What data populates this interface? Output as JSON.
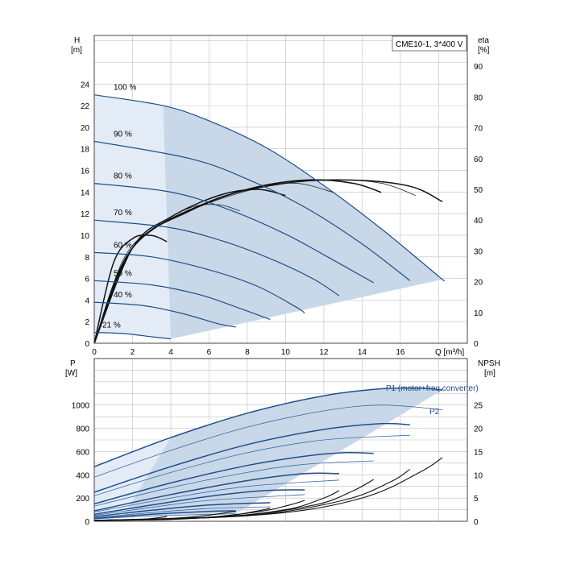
{
  "chart_data": [
    {
      "type": "line",
      "title": "CME10-1, 3*400 V",
      "xlabel": "Q [m³/h]",
      "ylabel_left": {
        "name": "H",
        "unit": "[m]"
      },
      "ylabel_right": {
        "name": "eta",
        "unit": "[%]"
      },
      "xlim": [
        0,
        19.5
      ],
      "ylim_left": [
        0,
        28.5
      ],
      "ylim_right": [
        0,
        100
      ],
      "x_ticks": [
        "0",
        "2",
        "4",
        "6",
        "8",
        "10",
        "12",
        "14",
        "16"
      ],
      "y_left_ticks": [
        "0",
        "2",
        "4",
        "6",
        "8",
        "10",
        "12",
        "14",
        "16",
        "18",
        "20",
        "22",
        "24"
      ],
      "y_right_ticks": [
        "0",
        "10",
        "20",
        "30",
        "40",
        "50",
        "60",
        "70",
        "80",
        "90"
      ],
      "grid": true,
      "head_curves": [
        {
          "name": "100 %",
          "points": [
            [
              0,
              23.0
            ],
            [
              3.6,
              22.0
            ],
            [
              6,
              20.6
            ],
            [
              9,
              18.1
            ],
            [
              12,
              14.6
            ],
            [
              15,
              10.6
            ],
            [
              18,
              6.2
            ],
            [
              18.2,
              5.9
            ]
          ]
        },
        {
          "name": "90 %",
          "points": [
            [
              0,
              18.7
            ],
            [
              5,
              17.1
            ],
            [
              8,
              15.2
            ],
            [
              11,
              12.6
            ],
            [
              14,
              9.2
            ],
            [
              16.5,
              5.8
            ]
          ]
        },
        {
          "name": "80 %",
          "points": [
            [
              0,
              14.8
            ],
            [
              4,
              14.0
            ],
            [
              7,
              12.4
            ],
            [
              10,
              10.1
            ],
            [
              12.8,
              7.4
            ],
            [
              14.6,
              5.6
            ]
          ]
        },
        {
          "name": "70 %",
          "points": [
            [
              0,
              11.4
            ],
            [
              4,
              10.7
            ],
            [
              7,
              9.3
            ],
            [
              9.5,
              7.6
            ],
            [
              11.5,
              5.9
            ],
            [
              12.8,
              4.4
            ]
          ]
        },
        {
          "name": "60 %",
          "points": [
            [
              0,
              8.4
            ],
            [
              3,
              8.0
            ],
            [
              6,
              6.8
            ],
            [
              8.5,
              5.3
            ],
            [
              10.5,
              3.4
            ],
            [
              11,
              2.8
            ]
          ]
        },
        {
          "name": "50 %",
          "points": [
            [
              0,
              5.8
            ],
            [
              3,
              5.4
            ],
            [
              5.5,
              4.5
            ],
            [
              7.5,
              3.3
            ],
            [
              9.2,
              2.2
            ]
          ]
        },
        {
          "name": "40 %",
          "points": [
            [
              0,
              3.8
            ],
            [
              2.5,
              3.5
            ],
            [
              4.5,
              2.8
            ],
            [
              6.5,
              1.8
            ],
            [
              7.4,
              1.5
            ]
          ]
        },
        {
          "name": "21 %",
          "points": [
            [
              0,
              1.0
            ],
            [
              1.5,
              0.9
            ],
            [
              3,
              0.6
            ],
            [
              4,
              0.4
            ]
          ]
        }
      ],
      "efficiency_curves": [
        {
          "points": [
            [
              0,
              0
            ],
            [
              1,
              26
            ],
            [
              2,
              34
            ],
            [
              3,
              35
            ],
            [
              3.8,
              33
            ]
          ]
        },
        {
          "points": [
            [
              0,
              0
            ],
            [
              1.5,
              27
            ],
            [
              3,
              37
            ],
            [
              5,
              44
            ],
            [
              6.5,
              45
            ],
            [
              7.6,
              43
            ]
          ]
        },
        {
          "points": [
            [
              0,
              0
            ],
            [
              2,
              31
            ],
            [
              4,
              41
            ],
            [
              6.5,
              48
            ],
            [
              8.5,
              50
            ],
            [
              10,
              48
            ]
          ]
        },
        {
          "points": [
            [
              0,
              0
            ],
            [
              2,
              31
            ],
            [
              5,
              43
            ],
            [
              8,
              50
            ],
            [
              10.5,
              52
            ],
            [
              12.5,
              49
            ]
          ]
        },
        {
          "points": [
            [
              0,
              0
            ],
            [
              2,
              31
            ],
            [
              5,
              43
            ],
            [
              8,
              50
            ],
            [
              11,
              53
            ],
            [
              13.5,
              52
            ],
            [
              15,
              49
            ]
          ]
        },
        {
          "points": [
            [
              0,
              0
            ],
            [
              2,
              31
            ],
            [
              5,
              43
            ],
            [
              9,
              51
            ],
            [
              12.5,
              53
            ],
            [
              15,
              52
            ],
            [
              16.8,
              48
            ]
          ]
        },
        {
          "points": [
            [
              0,
              0
            ],
            [
              2,
              31
            ],
            [
              6,
              46
            ],
            [
              10,
              52
            ],
            [
              13.5,
              53
            ],
            [
              16.5,
              51
            ],
            [
              18.2,
              46
            ]
          ]
        }
      ]
    },
    {
      "type": "line",
      "xlabel": "",
      "ylabel_left": {
        "name": "P",
        "unit": "[W]"
      },
      "ylabel_right": {
        "name": "NPSH",
        "unit": "[m]"
      },
      "xlim": [
        0,
        19.5
      ],
      "ylim_left": [
        0,
        1400
      ],
      "ylim_right": [
        0,
        35
      ],
      "y_left_ticks": [
        "0",
        "200",
        "400",
        "600",
        "800",
        "1000"
      ],
      "y_right_ticks": [
        "0",
        "5",
        "10",
        "15",
        "20",
        "25"
      ],
      "grid": true,
      "annotations": {
        "p1": "P1 (motor+freq.converter)",
        "p2": "P2"
      },
      "p1_curves": [
        {
          "name": "P1 (motor+freq.converter)",
          "points": [
            [
              0,
              470
            ],
            [
              4,
              720
            ],
            [
              8,
              930
            ],
            [
              12,
              1080
            ],
            [
              15,
              1140
            ],
            [
              17,
              1145
            ],
            [
              18.2,
              1130
            ]
          ]
        },
        {
          "points": [
            [
              0,
              250
            ],
            [
              4,
              470
            ],
            [
              8,
              660
            ],
            [
              12,
              790
            ],
            [
              15,
              840
            ],
            [
              16.5,
              830
            ]
          ]
        },
        {
          "points": [
            [
              0,
              150
            ],
            [
              4,
              330
            ],
            [
              8,
              480
            ],
            [
              11,
              560
            ],
            [
              13,
              590
            ],
            [
              14.6,
              585
            ]
          ]
        },
        {
          "points": [
            [
              0,
              90
            ],
            [
              4,
              230
            ],
            [
              8,
              350
            ],
            [
              11,
              410
            ],
            [
              12.8,
              410
            ]
          ]
        },
        {
          "points": [
            [
              0,
              60
            ],
            [
              3,
              140
            ],
            [
              6,
              215
            ],
            [
              9,
              265
            ],
            [
              11,
              270
            ]
          ]
        },
        {
          "points": [
            [
              0,
              40
            ],
            [
              3,
              95
            ],
            [
              6,
              140
            ],
            [
              9.2,
              160
            ]
          ]
        },
        {
          "points": [
            [
              0,
              25
            ],
            [
              3,
              60
            ],
            [
              6,
              85
            ],
            [
              7.4,
              90
            ]
          ]
        }
      ],
      "p2_curves": [
        {
          "name": "P2",
          "points": [
            [
              0,
              380
            ],
            [
              4,
              610
            ],
            [
              8,
              810
            ],
            [
              12,
              950
            ],
            [
              15,
              1000
            ],
            [
              18.2,
              960
            ]
          ]
        },
        {
          "points": [
            [
              0,
              220
            ],
            [
              4,
              420
            ],
            [
              8,
              590
            ],
            [
              12,
              700
            ],
            [
              16.5,
              740
            ]
          ]
        },
        {
          "points": [
            [
              0,
              130
            ],
            [
              4,
              290
            ],
            [
              8,
              420
            ],
            [
              11,
              490
            ],
            [
              14.6,
              520
            ]
          ]
        },
        {
          "points": [
            [
              0,
              80
            ],
            [
              4,
              200
            ],
            [
              8,
              300
            ],
            [
              12.8,
              355
            ]
          ]
        },
        {
          "points": [
            [
              0,
              50
            ],
            [
              3,
              120
            ],
            [
              6,
              180
            ],
            [
              11,
              230
            ]
          ]
        },
        {
          "points": [
            [
              0,
              30
            ],
            [
              3,
              75
            ],
            [
              6,
              110
            ],
            [
              9.2,
              125
            ]
          ]
        },
        {
          "points": [
            [
              0,
              20
            ],
            [
              3,
              45
            ],
            [
              7.4,
              65
            ]
          ]
        }
      ],
      "npsh_curves": [
        {
          "points": [
            [
              0,
              0.2
            ],
            [
              2,
              0.3
            ],
            [
              3,
              0.6
            ],
            [
              3.8,
              1.0
            ]
          ]
        },
        {
          "points": [
            [
              0,
              0.2
            ],
            [
              3,
              0.4
            ],
            [
              5,
              0.9
            ],
            [
              6.5,
              1.6
            ],
            [
              7.4,
              2.2
            ]
          ]
        },
        {
          "points": [
            [
              0,
              0.2
            ],
            [
              4,
              0.4
            ],
            [
              7,
              1.2
            ],
            [
              8.5,
              2.2
            ],
            [
              9.2,
              2.8
            ]
          ]
        },
        {
          "points": [
            [
              0,
              0.2
            ],
            [
              5,
              0.6
            ],
            [
              8.5,
              2.0
            ],
            [
              10.2,
              3.5
            ],
            [
              11,
              4.5
            ]
          ]
        },
        {
          "points": [
            [
              0,
              0.2
            ],
            [
              6,
              0.8
            ],
            [
              10,
              2.5
            ],
            [
              12,
              5.0
            ],
            [
              12.8,
              6.6
            ]
          ]
        },
        {
          "points": [
            [
              0,
              0.2
            ],
            [
              7,
              1.0
            ],
            [
              11.5,
              3.5
            ],
            [
              13.5,
              6.5
            ],
            [
              14.6,
              9.0
            ]
          ]
        },
        {
          "points": [
            [
              0,
              0.2
            ],
            [
              8,
              1.2
            ],
            [
              13,
              4.5
            ],
            [
              15.5,
              8.5
            ],
            [
              16.5,
              11.2
            ]
          ]
        },
        {
          "points": [
            [
              0,
              0.2
            ],
            [
              9,
              1.5
            ],
            [
              14,
              5.0
            ],
            [
              17,
              10.5
            ],
            [
              18.2,
              13.7
            ]
          ]
        }
      ]
    }
  ]
}
